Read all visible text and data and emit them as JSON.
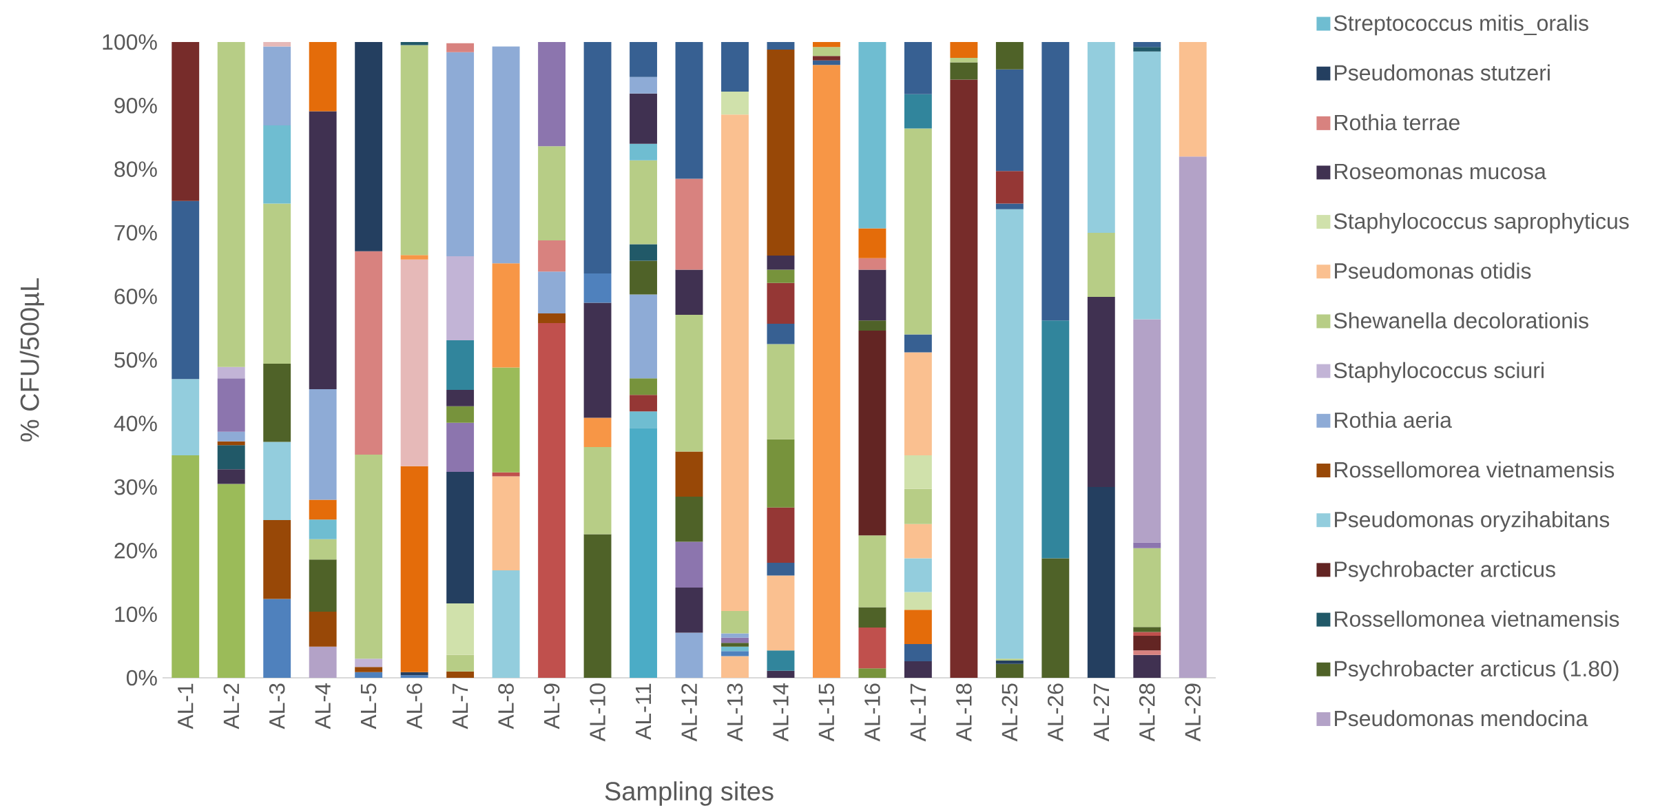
{
  "chart_data": {
    "type": "bar",
    "stacked": true,
    "legend": "right",
    "xlabel": "Sampling sites",
    "ylabel": "% CFU/500µL",
    "ylim": [
      0,
      100
    ],
    "yticks": [
      {
        "value": 0,
        "label": "0%"
      },
      {
        "value": 10,
        "label": "10%"
      },
      {
        "value": 20,
        "label": "20%"
      },
      {
        "value": 30,
        "label": "30%"
      },
      {
        "value": 40,
        "label": "40%"
      },
      {
        "value": 50,
        "label": "50%"
      },
      {
        "value": 60,
        "label": "60%"
      },
      {
        "value": 70,
        "label": "70%"
      },
      {
        "value": 80,
        "label": "80%"
      },
      {
        "value": 90,
        "label": "90%"
      },
      {
        "value": 100,
        "label": "100%"
      }
    ],
    "categories": [
      "AL-1",
      "AL-2",
      "AL-3",
      "AL-4",
      "AL-5",
      "AL-6",
      "AL-7",
      "AL-8",
      "AL-9",
      "AL-10",
      "AL-11",
      "AL-12",
      "AL-13",
      "AL-14",
      "AL-15",
      "AL-16",
      "AL-17",
      "AL-18",
      "AL-25",
      "AL-26",
      "AL-27",
      "AL-28",
      "AL-29"
    ],
    "series": [
      {
        "name": "Pseudomonas mendocina",
        "color": "#b3a2c7",
        "values": [
          null,
          null,
          null,
          4.9,
          null,
          null,
          null,
          null,
          null,
          null,
          null,
          null,
          null,
          null,
          null,
          null,
          null,
          null,
          null,
          null,
          null,
          null,
          82
        ]
      },
      {
        "color": "#9bbb59",
        "values": [
          35,
          30.5,
          null,
          null,
          null,
          null,
          null,
          null,
          null,
          null,
          null,
          null,
          null,
          null,
          null,
          null,
          null,
          null,
          null,
          null,
          null,
          null,
          null
        ]
      },
      {
        "color": "#4bacc6",
        "values": [
          null,
          null,
          null,
          null,
          null,
          null,
          null,
          null,
          null,
          null,
          39.3,
          null,
          null,
          null,
          null,
          null,
          null,
          null,
          null,
          null,
          null,
          null,
          null
        ]
      },
      {
        "color": "#6fbdd1",
        "values": [
          null,
          null,
          null,
          null,
          null,
          null,
          null,
          null,
          null,
          null,
          2.6,
          null,
          null,
          null,
          null,
          null,
          null,
          null,
          null,
          null,
          null,
          null,
          null
        ]
      },
      {
        "color": "#403151",
        "values": [
          null,
          2.3,
          null,
          null,
          null,
          null,
          null,
          null,
          null,
          null,
          null,
          null,
          null,
          1.1,
          null,
          null,
          2.6,
          null,
          null,
          null,
          null,
          3.6,
          null
        ]
      },
      {
        "color": "#31859c",
        "values": [
          null,
          null,
          null,
          null,
          null,
          null,
          null,
          null,
          null,
          null,
          null,
          null,
          null,
          3.2,
          null,
          null,
          null,
          null,
          null,
          null,
          null,
          null,
          null
        ]
      },
      {
        "color": "#fac090",
        "values": [
          null,
          null,
          null,
          null,
          null,
          null,
          null,
          null,
          null,
          null,
          null,
          null,
          3.4,
          11.8,
          null,
          null,
          null,
          null,
          null,
          null,
          null,
          null,
          18
        ]
      },
      {
        "color": "#4f81bd",
        "values": [
          null,
          null,
          12.4,
          null,
          0.9,
          0.4,
          null,
          null,
          null,
          null,
          null,
          null,
          0.8,
          null,
          null,
          null,
          null,
          null,
          null,
          null,
          null,
          null,
          null
        ]
      },
      {
        "color": "#243f60",
        "values": [
          null,
          null,
          null,
          null,
          null,
          0.5,
          null,
          null,
          null,
          null,
          null,
          null,
          null,
          null,
          null,
          null,
          null,
          null,
          null,
          null,
          30,
          null,
          null
        ]
      },
      {
        "color": "#984807",
        "values": [
          null,
          null,
          12.4,
          5.5,
          0.8,
          null,
          1,
          null,
          null,
          null,
          null,
          null,
          null,
          null,
          null,
          null,
          null,
          null,
          null,
          null,
          null,
          null,
          null
        ]
      },
      {
        "color": "#376092",
        "values": [
          null,
          null,
          null,
          null,
          null,
          null,
          null,
          null,
          null,
          null,
          null,
          null,
          null,
          2,
          null,
          null,
          2.7,
          null,
          null,
          null,
          null,
          null,
          null
        ]
      },
      {
        "color": "#e46c0a",
        "values": [
          null,
          null,
          null,
          null,
          null,
          32.4,
          null,
          null,
          null,
          null,
          null,
          null,
          null,
          null,
          null,
          null,
          5.4,
          null,
          null,
          null,
          null,
          null,
          null
        ]
      },
      {
        "color": "#d0e1ab",
        "values": [
          null,
          null,
          null,
          null,
          null,
          null,
          null,
          null,
          null,
          null,
          null,
          null,
          null,
          null,
          null,
          null,
          2.8,
          null,
          null,
          null,
          null,
          null,
          null
        ]
      },
      {
        "color": "#93cddd",
        "values": [
          12,
          null,
          12.3,
          null,
          null,
          null,
          null,
          16.9,
          null,
          null,
          null,
          null,
          null,
          null,
          null,
          null,
          5.3,
          null,
          null,
          null,
          null,
          null,
          null
        ]
      },
      {
        "color": "#fac090",
        "values": [
          null,
          null,
          null,
          null,
          null,
          null,
          null,
          14.8,
          null,
          null,
          null,
          null,
          null,
          null,
          null,
          null,
          5.4,
          null,
          null,
          null,
          null,
          null,
          null
        ]
      },
      {
        "color": "#953735",
        "values": [
          null,
          null,
          null,
          null,
          null,
          null,
          null,
          null,
          null,
          null,
          2.6,
          null,
          null,
          8.7,
          null,
          null,
          null,
          null,
          null,
          null,
          null,
          null,
          null
        ]
      },
      {
        "color": "#77933c",
        "values": [
          null,
          null,
          null,
          null,
          null,
          null,
          null,
          null,
          null,
          null,
          2.6,
          null,
          null,
          10.7,
          null,
          1.5,
          null,
          null,
          null,
          null,
          null,
          null,
          null
        ]
      },
      {
        "color": "#c0504d",
        "values": [
          null,
          null,
          null,
          null,
          null,
          null,
          null,
          0.6,
          55.8,
          null,
          null,
          null,
          null,
          null,
          null,
          6.4,
          null,
          null,
          null,
          null,
          null,
          null,
          null
        ]
      },
      {
        "color": "#9bbb59",
        "values": [
          null,
          null,
          null,
          null,
          null,
          null,
          null,
          16.5,
          null,
          null,
          null,
          null,
          null,
          null,
          null,
          null,
          null,
          null,
          null,
          null,
          null,
          null,
          null
        ]
      },
      {
        "color": "#8eabd6",
        "values": [
          null,
          null,
          null,
          null,
          null,
          null,
          null,
          null,
          null,
          null,
          13.2,
          7.1,
          null,
          null,
          null,
          null,
          null,
          null,
          null,
          null,
          null,
          null,
          null
        ]
      },
      {
        "name": "Psychrobacter arcticus (1.80)",
        "color": "#4f6228",
        "values": [
          null,
          null,
          12.3,
          8.2,
          null,
          null,
          null,
          null,
          null,
          22.6,
          5.3,
          null,
          null,
          null,
          null,
          3.2,
          null,
          null,
          2.2,
          18.8,
          null,
          null,
          null
        ]
      },
      {
        "name": "Rossellomonea vietnamensis",
        "color": "#215968",
        "values": [
          null,
          3.8,
          null,
          null,
          null,
          null,
          null,
          null,
          null,
          null,
          2.6,
          null,
          null,
          null,
          null,
          null,
          null,
          null,
          null,
          null,
          null,
          null,
          null
        ]
      },
      {
        "color": "#b7cd86",
        "values": [
          null,
          null,
          25.2,
          3.2,
          null,
          null,
          2.6,
          null,
          null,
          13.7,
          13.2,
          null,
          null,
          15,
          null,
          11.3,
          5.5,
          null,
          null,
          null,
          null,
          null,
          null
        ]
      },
      {
        "name": "Psychrobacter arcticus",
        "color": "#632523",
        "values": [
          null,
          null,
          null,
          null,
          null,
          null,
          null,
          null,
          null,
          null,
          null,
          null,
          null,
          null,
          null,
          32.2,
          null,
          null,
          null,
          null,
          null,
          null,
          null
        ]
      },
      {
        "color": "#6fbdd1",
        "values": [
          null,
          null,
          12.3,
          3.1,
          null,
          null,
          null,
          null,
          null,
          null,
          2.6,
          null,
          0.7,
          null,
          null,
          null,
          null,
          null,
          null,
          null,
          null,
          null,
          null
        ]
      },
      {
        "color": "#e46c0a",
        "values": [
          null,
          null,
          null,
          3.1,
          null,
          null,
          null,
          null,
          null,
          null,
          null,
          null,
          null,
          null,
          null,
          null,
          null,
          null,
          null,
          null,
          null,
          null,
          null
        ]
      },
      {
        "color": "#d0e1ab",
        "values": [
          null,
          null,
          null,
          null,
          null,
          null,
          8.1,
          null,
          null,
          null,
          null,
          null,
          null,
          null,
          null,
          null,
          5.3,
          null,
          null,
          null,
          null,
          null,
          null
        ]
      },
      {
        "color": "#243f60",
        "values": [
          null,
          null,
          null,
          null,
          null,
          null,
          20.7,
          null,
          null,
          null,
          null,
          null,
          null,
          null,
          null,
          null,
          null,
          null,
          0.5,
          null,
          null,
          null,
          null
        ]
      },
      {
        "color": "#fac090",
        "values": [
          null,
          null,
          null,
          null,
          null,
          null,
          null,
          null,
          null,
          null,
          null,
          null,
          null,
          null,
          null,
          null,
          16.2,
          null,
          null,
          null,
          null,
          null,
          null
        ]
      },
      {
        "color": "#376092",
        "values": [
          28,
          null,
          null,
          null,
          null,
          null,
          null,
          null,
          null,
          null,
          null,
          null,
          null,
          3.2,
          null,
          null,
          2.8,
          null,
          null,
          null,
          null,
          null,
          null
        ]
      },
      {
        "color": "#772c2a",
        "values": [
          25,
          null,
          null,
          null,
          null,
          null,
          null,
          null,
          null,
          null,
          null,
          null,
          null,
          null,
          null,
          null,
          null,
          94.1,
          null,
          null,
          null,
          null,
          null
        ]
      },
      {
        "color": "#b7cd86",
        "values": [
          null,
          null,
          null,
          null,
          null,
          null,
          null,
          null,
          null,
          null,
          null,
          null,
          null,
          null,
          null,
          null,
          32.4,
          null,
          0.3,
          null,
          null,
          null,
          null
        ]
      },
      {
        "name": "Pseudomonas oryzihabitans",
        "color": "#93cddd",
        "values": [
          null,
          null,
          null,
          null,
          null,
          null,
          null,
          null,
          null,
          null,
          null,
          null,
          null,
          null,
          null,
          null,
          null,
          null,
          70.7,
          null,
          null,
          null,
          null
        ]
      },
      {
        "color": "#376092",
        "values": [
          null,
          null,
          null,
          null,
          null,
          null,
          null,
          null,
          null,
          null,
          null,
          null,
          null,
          null,
          null,
          null,
          null,
          null,
          0.9,
          null,
          null,
          null,
          null
        ]
      },
      {
        "color": "#31859c",
        "values": [
          null,
          null,
          null,
          null,
          null,
          null,
          null,
          null,
          null,
          null,
          null,
          null,
          null,
          null,
          null,
          null,
          5.4,
          null,
          null,
          37.4,
          null,
          null,
          null
        ]
      },
      {
        "color": "#953735",
        "values": [
          null,
          null,
          null,
          null,
          null,
          null,
          null,
          null,
          null,
          null,
          null,
          null,
          null,
          6.4,
          null,
          null,
          null,
          null,
          5.1,
          null,
          null,
          null,
          null
        ]
      },
      {
        "color": "#77933c",
        "values": [
          null,
          null,
          null,
          null,
          null,
          null,
          null,
          null,
          null,
          null,
          null,
          null,
          null,
          2.1,
          null,
          null,
          null,
          null,
          null,
          null,
          null,
          null,
          null
        ]
      },
      {
        "color": "#403151",
        "values": [
          null,
          null,
          null,
          null,
          null,
          null,
          null,
          null,
          null,
          null,
          7.9,
          7.1,
          null,
          2.2,
          null,
          null,
          null,
          null,
          null,
          null,
          29.9,
          null,
          null
        ]
      },
      {
        "color": "#8c75ae",
        "values": [
          null,
          null,
          null,
          null,
          null,
          null,
          7.7,
          null,
          null,
          null,
          null,
          7.2,
          null,
          null,
          null,
          null,
          null,
          null,
          null,
          null,
          null,
          null,
          null
        ]
      },
      {
        "color": "#77933c",
        "values": [
          null,
          null,
          null,
          null,
          null,
          null,
          2.6,
          null,
          null,
          null,
          null,
          null,
          null,
          null,
          null,
          null,
          null,
          null,
          null,
          null,
          null,
          null,
          null
        ]
      },
      {
        "color": "#403151",
        "values": [
          null,
          null,
          null,
          null,
          null,
          null,
          2.6,
          null,
          null,
          null,
          null,
          null,
          null,
          null,
          null,
          null,
          null,
          null,
          null,
          null,
          null,
          null,
          null
        ]
      },
      {
        "color": "#31859c",
        "values": [
          null,
          null,
          null,
          null,
          null,
          null,
          7.8,
          null,
          null,
          null,
          null,
          null,
          null,
          null,
          null,
          null,
          null,
          null,
          null,
          null,
          null,
          null,
          null
        ]
      },
      {
        "color": "#4f6228",
        "values": [
          null,
          null,
          null,
          null,
          null,
          null,
          null,
          null,
          null,
          null,
          null,
          7.1,
          0.6,
          null,
          null,
          1.6,
          null,
          2.7,
          null,
          null,
          null,
          null,
          null
        ]
      },
      {
        "color": "#8c75ae",
        "values": [
          null,
          null,
          null,
          null,
          null,
          null,
          null,
          null,
          null,
          null,
          null,
          null,
          0.8,
          null,
          null,
          null,
          null,
          null,
          null,
          null,
          null,
          null,
          null
        ]
      },
      {
        "color": "#8eabd6",
        "values": [
          null,
          null,
          12.4,
          17.4,
          null,
          null,
          null,
          null,
          null,
          null,
          2.6,
          null,
          0.7,
          null,
          null,
          null,
          null,
          null,
          null,
          null,
          null,
          null,
          null
        ]
      },
      {
        "color": "#e6b9b8",
        "values": [
          null,
          null,
          0.7,
          null,
          null,
          32.5,
          null,
          null,
          null,
          null,
          null,
          null,
          null,
          null,
          null,
          null,
          null,
          null,
          null,
          null,
          null,
          null,
          null
        ]
      },
      {
        "color": "#f79646",
        "values": [
          null,
          null,
          null,
          null,
          null,
          0.7,
          null,
          16.4,
          null,
          4.6,
          null,
          null,
          null,
          null,
          96.4,
          null,
          null,
          null,
          null,
          null,
          null,
          null,
          null
        ]
      },
      {
        "color": "#376092",
        "values": [
          null,
          null,
          null,
          null,
          null,
          null,
          null,
          null,
          null,
          null,
          5.5,
          null,
          null,
          null,
          0.7,
          null,
          8.2,
          null,
          16,
          43.8,
          null,
          null,
          null
        ]
      },
      {
        "color": "#4f6228",
        "values": [
          null,
          null,
          null,
          null,
          null,
          null,
          null,
          null,
          null,
          null,
          null,
          null,
          null,
          null,
          null,
          null,
          null,
          null,
          4.3,
          null,
          null,
          null,
          null
        ]
      },
      {
        "color": "#772c2a",
        "values": [
          null,
          null,
          null,
          null,
          null,
          null,
          null,
          null,
          null,
          null,
          null,
          null,
          null,
          null,
          0.7,
          null,
          null,
          null,
          null,
          null,
          null,
          null,
          null
        ]
      },
      {
        "name": "Rossellomorea vietnamensis",
        "color": "#984807",
        "values": [
          null,
          0.6,
          null,
          null,
          null,
          null,
          null,
          null,
          1.5,
          null,
          null,
          7.1,
          null,
          32.4,
          null,
          null,
          null,
          null,
          null,
          null,
          null,
          null,
          null
        ]
      },
      {
        "name": "Rothia aeria",
        "color": "#8eabd6",
        "values": [
          null,
          1.5,
          null,
          null,
          null,
          null,
          null,
          34.1,
          6.6,
          null,
          null,
          null,
          null,
          null,
          null,
          null,
          null,
          null,
          null,
          null,
          null,
          null,
          null
        ]
      },
      {
        "color": "#8c75ae",
        "values": [
          null,
          8.4,
          null,
          null,
          null,
          null,
          null,
          null,
          null,
          null,
          null,
          null,
          null,
          null,
          null,
          null,
          null,
          null,
          null,
          null,
          null,
          null,
          null
        ]
      },
      {
        "name": "Staphylococcus sciuri",
        "color": "#c2b4d6",
        "values": [
          null,
          1.8,
          null,
          null,
          1.3,
          null,
          13.2,
          null,
          null,
          null,
          null,
          null,
          null,
          null,
          null,
          null,
          null,
          null,
          null,
          null,
          null,
          null,
          null
        ]
      },
      {
        "color": "#8eabd6",
        "values": [
          null,
          null,
          null,
          null,
          null,
          null,
          32.1,
          null,
          null,
          null,
          null,
          null,
          null,
          null,
          null,
          null,
          null,
          null,
          null,
          null,
          null,
          null,
          null
        ]
      },
      {
        "name": "Shewanella decolorationis",
        "color": "#b7cd86",
        "values": [
          null,
          51.1,
          null,
          null,
          32.1,
          33,
          null,
          null,
          null,
          null,
          null,
          21.5,
          3.5,
          null,
          1.4,
          null,
          null,
          0.7,
          null,
          null,
          10.1,
          null,
          null
        ]
      },
      {
        "color": "#93cddd",
        "values": [
          null,
          null,
          null,
          null,
          null,
          null,
          null,
          null,
          null,
          null,
          null,
          null,
          null,
          null,
          null,
          null,
          null,
          null,
          null,
          null,
          30,
          null,
          null
        ]
      },
      {
        "color": "#215968",
        "values": [
          null,
          null,
          null,
          null,
          null,
          0.5,
          null,
          null,
          null,
          null,
          null,
          null,
          null,
          null,
          null,
          null,
          null,
          null,
          null,
          null,
          null,
          null,
          null
        ]
      },
      {
        "name": "Pseudomonas otidis",
        "color": "#fac090",
        "values": [
          null,
          null,
          null,
          null,
          null,
          null,
          null,
          null,
          null,
          null,
          null,
          null,
          78.1,
          null,
          null,
          null,
          null,
          null,
          null,
          null,
          null,
          null,
          null
        ]
      },
      {
        "name": "Staphylococcus saprophyticus",
        "color": "#d0e1ab",
        "values": [
          null,
          null,
          null,
          null,
          null,
          null,
          null,
          null,
          null,
          null,
          null,
          null,
          3.6,
          null,
          null,
          null,
          null,
          null,
          null,
          null,
          null,
          null,
          null
        ]
      },
      {
        "name": "Roseomonas mucosa",
        "color": "#403151",
        "values": [
          null,
          null,
          null,
          43.7,
          null,
          null,
          null,
          null,
          null,
          18.1,
          null,
          7.1,
          null,
          null,
          null,
          8,
          null,
          null,
          null,
          null,
          null,
          null,
          null
        ]
      },
      {
        "color": "#4f81bd",
        "values": [
          null,
          null,
          null,
          null,
          null,
          null,
          null,
          null,
          null,
          4.6,
          null,
          null,
          null,
          null,
          null,
          null,
          null,
          null,
          null,
          null,
          null,
          null,
          null
        ]
      },
      {
        "name": "Rothia terrae",
        "color": "#d8827f",
        "values": [
          null,
          null,
          null,
          null,
          32,
          null,
          1.4,
          null,
          4.9,
          null,
          null,
          14.3,
          null,
          null,
          null,
          1.8,
          null,
          null,
          null,
          null,
          null,
          0.7,
          null
        ]
      },
      {
        "color": "#632523",
        "values": [
          null,
          null,
          null,
          null,
          null,
          null,
          null,
          null,
          null,
          null,
          null,
          null,
          null,
          null,
          null,
          null,
          null,
          null,
          null,
          null,
          null,
          2.3,
          null
        ]
      },
      {
        "color": "#c0504d",
        "values": [
          null,
          null,
          null,
          null,
          null,
          null,
          null,
          null,
          null,
          null,
          null,
          null,
          null,
          null,
          null,
          null,
          null,
          null,
          null,
          null,
          null,
          0.6,
          null
        ]
      },
      {
        "color": "#4f6228",
        "values": [
          null,
          null,
          null,
          null,
          null,
          null,
          null,
          null,
          null,
          null,
          null,
          null,
          null,
          null,
          null,
          null,
          null,
          null,
          null,
          null,
          null,
          0.8,
          null
        ]
      },
      {
        "color": "#b7cd86",
        "values": [
          null,
          null,
          null,
          null,
          null,
          null,
          null,
          null,
          14.8,
          null,
          null,
          null,
          null,
          null,
          null,
          null,
          null,
          null,
          null,
          null,
          null,
          12.4,
          null
        ]
      },
      {
        "color": "#8c75ae",
        "values": [
          null,
          null,
          null,
          null,
          null,
          null,
          null,
          null,
          16.4,
          null,
          null,
          null,
          null,
          null,
          null,
          null,
          null,
          null,
          null,
          null,
          null,
          0.9,
          null
        ]
      },
      {
        "color": "#b3a2c7",
        "values": [
          null,
          null,
          null,
          null,
          null,
          null,
          null,
          null,
          null,
          null,
          null,
          null,
          null,
          null,
          null,
          null,
          null,
          null,
          null,
          null,
          null,
          35.1,
          null
        ]
      },
      {
        "color": "#93cddd",
        "values": [
          null,
          null,
          null,
          null,
          null,
          null,
          null,
          null,
          null,
          null,
          null,
          null,
          null,
          null,
          null,
          null,
          null,
          null,
          null,
          null,
          null,
          42.1,
          null
        ]
      },
      {
        "color": "#215968",
        "values": [
          null,
          null,
          null,
          null,
          null,
          null,
          null,
          null,
          null,
          null,
          null,
          null,
          null,
          null,
          null,
          null,
          null,
          null,
          null,
          null,
          null,
          0.7,
          null
        ]
      },
      {
        "name": "Pseudomonas stutzeri",
        "color": "#243f60",
        "values": [
          null,
          null,
          null,
          null,
          32.9,
          null,
          null,
          null,
          null,
          null,
          null,
          null,
          null,
          null,
          null,
          null,
          null,
          null,
          null,
          null,
          null,
          null,
          null
        ]
      },
      {
        "color": "#e46c0a",
        "values": [
          null,
          null,
          null,
          10.9,
          null,
          null,
          null,
          null,
          null,
          null,
          null,
          null,
          null,
          null,
          0.8,
          4.7,
          null,
          2.5,
          null,
          null,
          null,
          null,
          null
        ]
      },
      {
        "name": "Streptococcus mitis_oralis",
        "color": "#6fbdd1",
        "values": [
          null,
          null,
          null,
          null,
          null,
          null,
          null,
          null,
          null,
          null,
          null,
          null,
          null,
          null,
          null,
          29.3,
          null,
          null,
          null,
          null,
          null,
          null,
          null
        ]
      },
      {
        "color": "#376092",
        "values": [
          null,
          null,
          null,
          null,
          null,
          null,
          null,
          null,
          null,
          36.4,
          null,
          21.5,
          7.8,
          1.2,
          null,
          null,
          null,
          null,
          null,
          null,
          null,
          0.8,
          null
        ]
      }
    ]
  }
}
